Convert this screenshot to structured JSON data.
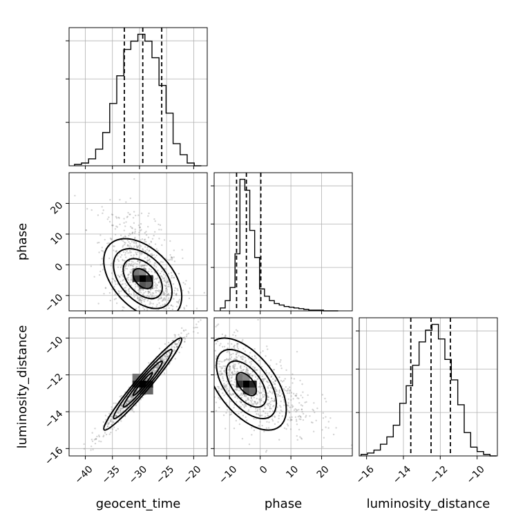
{
  "chart_data": {
    "type": "corner",
    "parameters": [
      "geocent_time",
      "phase",
      "luminosity_distance"
    ],
    "labels": {
      "geocent_time": "geocent_time",
      "phase": "phase",
      "luminosity_distance": "luminosity_distance"
    },
    "ranges": {
      "geocent_time": [
        -43,
        -17.5
      ],
      "phase": [
        -15,
        30
      ],
      "luminosity_distance": [
        -16.4,
        -8.9
      ]
    },
    "ticks": {
      "geocent_time": [
        -40,
        -35,
        -30,
        -25,
        -20
      ],
      "phase": [
        -10,
        0,
        10,
        20
      ],
      "luminosity_distance": [
        -16,
        -14,
        -12,
        -10
      ]
    },
    "tick_labels": {
      "geocent_time": [
        "−40",
        "−35",
        "−30",
        "−25",
        "−20"
      ],
      "phase": [
        "−10",
        "0",
        "10",
        "20"
      ],
      "luminosity_distance": [
        "−16",
        "−14",
        "−12",
        "−10"
      ]
    },
    "quantiles": {
      "geocent_time": [
        -32.8,
        -29.4,
        -25.9
      ],
      "phase": [
        -7.7,
        -4.5,
        0.2
      ],
      "luminosity_distance": [
        -13.6,
        -12.5,
        -11.45
      ]
    },
    "histograms": {
      "geocent_time": {
        "bin_edges": [
          -42,
          -40.7,
          -39.4,
          -38.1,
          -36.8,
          -35.5,
          -34.2,
          -32.9,
          -31.6,
          -30.3,
          -29.0,
          -27.7,
          -26.4,
          -25.1,
          -23.8,
          -22.5,
          -21.2,
          -19.9,
          -18.6
        ],
        "counts": [
          1,
          2,
          5,
          12,
          24,
          45,
          65,
          84,
          90,
          95,
          90,
          78,
          58,
          38,
          16,
          8,
          2,
          0
        ]
      },
      "phase": {
        "bin_edges": [
          -13,
          -11.4,
          -9.8,
          -8.2,
          -6.6,
          -5.0,
          -3.4,
          -1.8,
          -0.2,
          1.4,
          3.0,
          4.6,
          6.2,
          7.8,
          9.4,
          11.0,
          12.6,
          14.2,
          15.8,
          17.4,
          19.0,
          20.6,
          22.2,
          23.8,
          25.4
        ],
        "counts": [
          4,
          14,
          32,
          78,
          180,
          165,
          110,
          73,
          30,
          20,
          14,
          10,
          8,
          6,
          5,
          4,
          3,
          2,
          1,
          1,
          1,
          0,
          0,
          0
        ]
      },
      "luminosity_distance": {
        "bin_edges": [
          -16.3,
          -15.95,
          -15.6,
          -15.25,
          -14.9,
          -14.55,
          -14.2,
          -13.85,
          -13.5,
          -13.15,
          -12.8,
          -12.45,
          -12.1,
          -11.75,
          -11.4,
          -11.05,
          -10.7,
          -10.35,
          -10.0,
          -9.65,
          -9.3,
          -8.95
        ],
        "counts": [
          1,
          2,
          4,
          8,
          13,
          21,
          36,
          48,
          62,
          78,
          86,
          90,
          80,
          66,
          52,
          35,
          16,
          6,
          3,
          1,
          0
        ]
      }
    },
    "density_peaks": {
      "phase_vs_geocent_time": {
        "x": -29.4,
        "y": -4.5
      },
      "luminosity_distance_vs_geocent_time": {
        "x": -29.4,
        "y": -12.5
      },
      "luminosity_distance_vs_phase": {
        "x": -4.5,
        "y": -12.5
      }
    },
    "grid": true,
    "point_color": "#808080",
    "line_color": "#000000"
  }
}
